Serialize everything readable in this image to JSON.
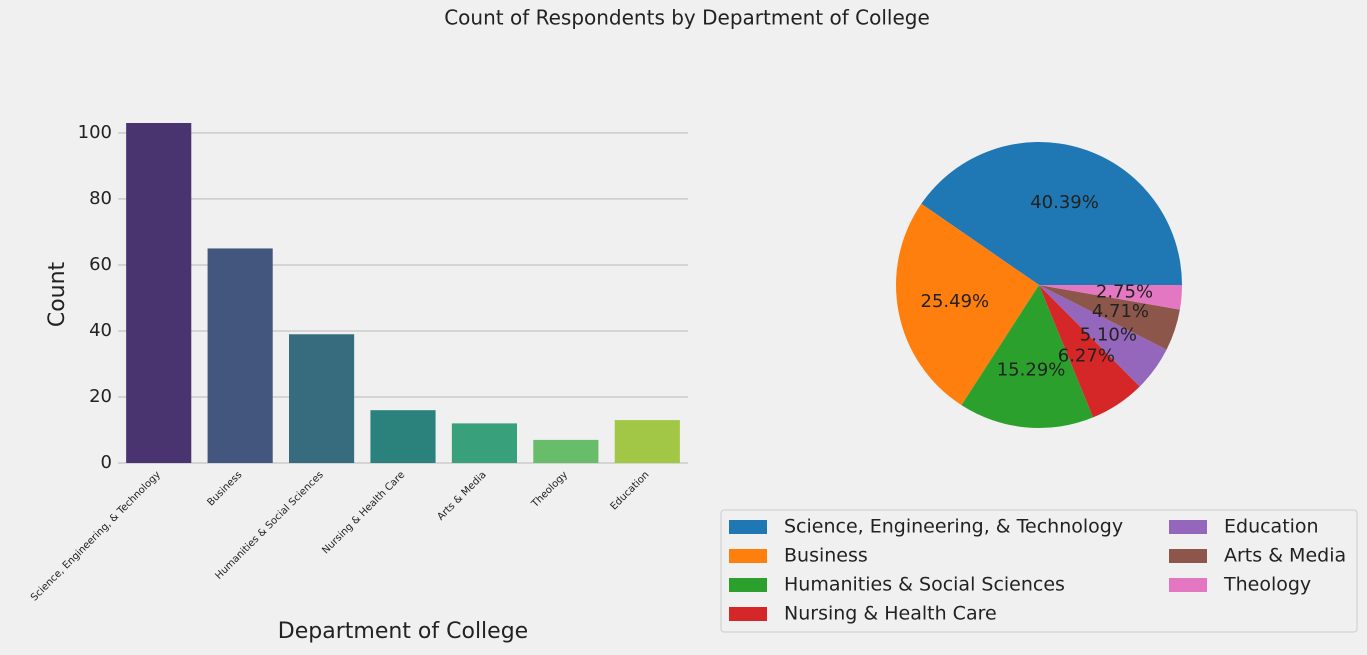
{
  "title": "Count of Respondents by Department of College",
  "chart_data": [
    {
      "type": "bar",
      "categories": [
        "Science, Engineering, & Technology",
        "Business",
        "Humanities & Social Sciences",
        "Nursing & Health Care",
        "Arts & Media",
        "Theology",
        "Education"
      ],
      "values": [
        103,
        65,
        39,
        16,
        12,
        7,
        13
      ],
      "colors": [
        "#4a3470",
        "#43567e",
        "#376b7e",
        "#2b827c",
        "#38a07a",
        "#68bd6a",
        "#a2c645"
      ],
      "xlabel": "Department of College",
      "ylabel": "Count",
      "ylim": [
        0,
        108.15
      ],
      "yticks": [
        0,
        20,
        40,
        60,
        80,
        100
      ],
      "grid": true
    },
    {
      "type": "pie",
      "categories": [
        "Science, Engineering, & Technology",
        "Business",
        "Humanities & Social Sciences",
        "Nursing & Health Care",
        "Education",
        "Arts & Media",
        "Theology"
      ],
      "values": [
        40.39,
        25.49,
        15.29,
        6.27,
        5.1,
        4.71,
        2.75
      ],
      "value_labels": [
        "40.39%",
        "25.49%",
        "15.29%",
        "6.27%",
        "5.10%",
        "4.71%",
        "2.75%"
      ],
      "colors": [
        "#1f77b4",
        "#ff7f0e",
        "#2ca02c",
        "#d62728",
        "#9467bd",
        "#8c564b",
        "#e377c2"
      ],
      "legend": "lower right",
      "legend_columns": 2
    }
  ]
}
